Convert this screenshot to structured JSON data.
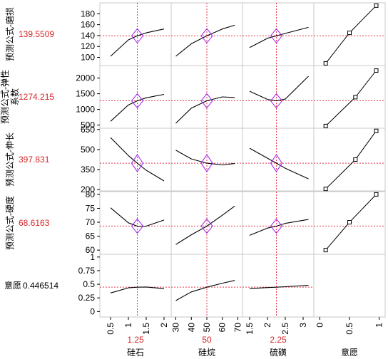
{
  "row_headers": [
    {
      "label": "预测公式-磨损",
      "value": "139.5509"
    },
    {
      "label": "预测公式-弹性系数",
      "value": "1274.215"
    },
    {
      "label": "预测公式-伸长",
      "value": "397.831"
    },
    {
      "label": "预测公式-硬度",
      "value": "68.6163"
    },
    {
      "label": "意愿",
      "value": "0.446514"
    }
  ],
  "columns": [
    {
      "name": "硅石",
      "current": "1.25",
      "current_value": 1.25,
      "xlim": [
        0.2,
        2.2
      ],
      "ticks": [
        0.5,
        1,
        1.5,
        2
      ],
      "tick_labels": [
        "0.5",
        "1",
        "1.5",
        "2"
      ]
    },
    {
      "name": "硅烷",
      "current": "50",
      "current_value": 50,
      "xlim": [
        27,
        73
      ],
      "ticks": [
        30,
        40,
        50,
        60,
        70
      ],
      "tick_labels": [
        "30",
        "40",
        "50",
        "60",
        "70"
      ]
    },
    {
      "name": "硫磺",
      "current": "2.25",
      "current_value": 2.25,
      "xlim": [
        1.3,
        3.3
      ],
      "ticks": [
        1.5,
        2,
        2.5,
        3
      ],
      "tick_labels": [
        "1.5",
        "2",
        "2.5",
        "3"
      ]
    },
    {
      "name": "意愿",
      "xlim": [
        -0.1,
        1.1
      ],
      "ticks": [
        0,
        0.5,
        1
      ],
      "tick_labels": [
        "0",
        "0.5",
        "1"
      ]
    }
  ],
  "colors": {
    "curve": "#000000",
    "crosshair": "#e8384f",
    "diamond": "#a020f0",
    "grid_line": "#d0d0d0",
    "label_value": "#d62728"
  },
  "chart_data": {
    "type": "line",
    "rows": [
      {
        "ylim": [
          85,
          200
        ],
        "yticks": [
          100,
          120,
          140,
          160,
          180
        ],
        "current_y": 139.5509,
        "profiles": [
          {
            "x": [
              0.5,
              1.0,
              1.25,
              1.5,
              2.0
            ],
            "y": [
              102,
              132,
              139.55,
              145,
              152
            ]
          },
          {
            "x": [
              30,
              40,
              50,
              60,
              68
            ],
            "y": [
              102,
              125,
              139.55,
              152,
              159
            ]
          },
          {
            "x": [
              1.5,
              2.0,
              2.25,
              2.5,
              3.15
            ],
            "y": [
              118,
              135,
              139.55,
              144,
              155
            ]
          }
        ],
        "desirability": {
          "x": [
            0.1,
            0.5,
            0.95
          ],
          "y": [
            89,
            145,
            195
          ]
        }
      },
      {
        "ylim": [
          400,
          2400
        ],
        "yticks": [
          500,
          1000,
          1500,
          2000
        ],
        "current_y": 1274.215,
        "profiles": [
          {
            "x": [
              0.5,
              1.0,
              1.25,
              1.5,
              2.0
            ],
            "y": [
              620,
              1140,
              1274,
              1370,
              1480
            ]
          },
          {
            "x": [
              30,
              40,
              50,
              60,
              68
            ],
            "y": [
              560,
              1040,
              1274,
              1400,
              1380
            ]
          },
          {
            "x": [
              1.5,
              2.0,
              2.25,
              2.5,
              3.15
            ],
            "y": [
              1580,
              1320,
              1274,
              1330,
              2060
            ]
          }
        ],
        "desirability": {
          "x": [
            0.1,
            0.6,
            0.95
          ],
          "y": [
            470,
            1390,
            2240
          ]
        }
      },
      {
        "ylim": [
          190,
          660
        ],
        "yticks": [
          200,
          350,
          500,
          650
        ],
        "current_y": 397.831,
        "profiles": [
          {
            "x": [
              0.5,
              1.0,
              1.25,
              1.5,
              2.0
            ],
            "y": [
              590,
              455,
              398,
              345,
              265
            ]
          },
          {
            "x": [
              30,
              40,
              50,
              60,
              68
            ],
            "y": [
              495,
              430,
              398,
              385,
              395
            ]
          },
          {
            "x": [
              1.5,
              2.0,
              2.25,
              2.5,
              3.15
            ],
            "y": [
              510,
              435,
              398,
              360,
              280
            ]
          }
        ],
        "desirability": {
          "x": [
            0.1,
            0.6,
            0.95
          ],
          "y": [
            205,
            425,
            640
          ]
        }
      },
      {
        "ylim": [
          58.5,
          81
        ],
        "yticks": [
          60,
          65,
          70,
          75,
          80
        ],
        "current_y": 68.6163,
        "profiles": [
          {
            "x": [
              0.5,
              1.0,
              1.25,
              1.5,
              2.0
            ],
            "y": [
              75.2,
              69.8,
              68.6,
              68.6,
              70.8
            ]
          },
          {
            "x": [
              30,
              40,
              50,
              60,
              68
            ],
            "y": [
              62,
              65.5,
              68.6,
              72.5,
              75.8
            ]
          },
          {
            "x": [
              1.5,
              2.0,
              2.25,
              2.5,
              3.15
            ],
            "y": [
              65.3,
              67.9,
              68.6,
              69.6,
              71
            ]
          }
        ],
        "desirability": {
          "x": [
            0.1,
            0.5,
            0.95
          ],
          "y": [
            60,
            70,
            80
          ]
        }
      },
      {
        "ylim": [
          -0.1,
          1.05
        ],
        "yticks": [
          0,
          0.25,
          0.5,
          0.75,
          1
        ],
        "ytick_labels": [
          "0",
          "0.25",
          "0.5",
          "0.75",
          "1"
        ],
        "current_y": 0.446514,
        "profiles": [
          {
            "x": [
              0.5,
              1.0,
              1.25,
              1.5,
              2.0
            ],
            "y": [
              0.34,
              0.435,
              0.4465,
              0.45,
              0.42
            ]
          },
          {
            "x": [
              30,
              40,
              50,
              60,
              68
            ],
            "y": [
              0.2,
              0.36,
              0.4465,
              0.52,
              0.57
            ]
          },
          {
            "x": [
              1.5,
              2.0,
              2.25,
              2.5,
              3.15
            ],
            "y": [
              0.42,
              0.44,
              0.4465,
              0.455,
              0.48
            ]
          }
        ],
        "desirability": null
      }
    ]
  }
}
